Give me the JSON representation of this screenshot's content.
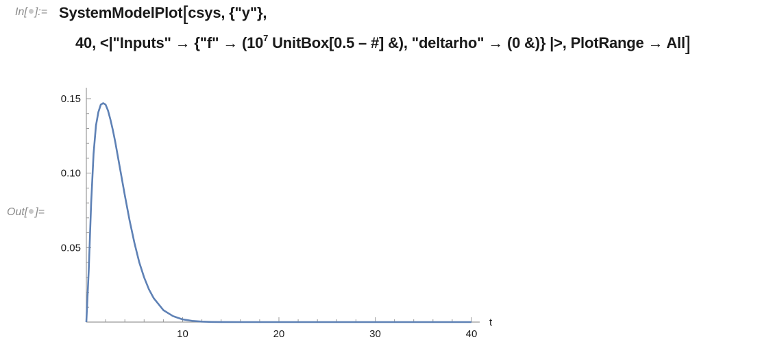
{
  "notebook": {
    "in_label": "In[",
    "in_label_end": "]:=",
    "out_label": "Out[",
    "out_label_end": "]=",
    "input": {
      "line1_func": "SystemModelPlot",
      "line1_args": "csys, {\"y\"},",
      "line2_part1": "40, <|\"Inputs\" → {\"f\" → (10",
      "line2_exponent": "7",
      "line2_part2": " UnitBox[0.5 – #] &), \"deltarho\" → (0 &)} |>, PlotRange → All"
    }
  },
  "chart_data": {
    "type": "line",
    "xlabel": "t",
    "ylabel": "",
    "xlim": [
      0,
      40
    ],
    "ylim": [
      0,
      0.15
    ],
    "x_ticks": [
      10,
      20,
      30,
      40
    ],
    "x_tick_labels": [
      "10",
      "20",
      "30",
      "40"
    ],
    "y_ticks": [
      0.05,
      0.1,
      0.15
    ],
    "y_tick_labels": [
      "0.05",
      "0.10",
      "0.15"
    ],
    "grid": false,
    "line_color": "#5E81B5",
    "series": [
      {
        "x": [
          0,
          0.25,
          0.5,
          0.75,
          1.0,
          1.25,
          1.5,
          1.75,
          2.0,
          2.25,
          2.5,
          2.75,
          3.0,
          3.5,
          4.0,
          4.5,
          5.0,
          5.5,
          6.0,
          6.5,
          7.0,
          8.0,
          9.0,
          10.0,
          11.0,
          12.0,
          13.0,
          14.0,
          16.0,
          20.0,
          25.0,
          30.0,
          35.0,
          40.0
        ],
        "values": [
          0,
          0.035,
          0.08,
          0.113,
          0.132,
          0.141,
          0.146,
          0.147,
          0.146,
          0.142,
          0.136,
          0.129,
          0.121,
          0.103,
          0.085,
          0.068,
          0.053,
          0.04,
          0.03,
          0.022,
          0.016,
          0.008,
          0.004,
          0.0018,
          0.0008,
          0.0003,
          0.0001,
          4e-05,
          0.0,
          0.0,
          0.0,
          0.0,
          0.0,
          0.0
        ]
      }
    ]
  }
}
